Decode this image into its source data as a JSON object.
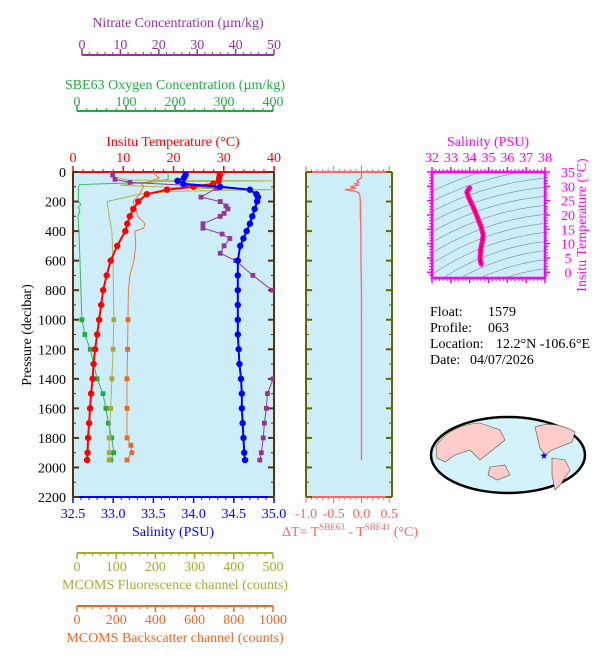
{
  "colors": {
    "temperature": "#ff0000",
    "salinity": "#0000ff",
    "nitrate": "#993399",
    "oxygen": "#22aa44",
    "fluorescence": "#aaaa33",
    "backscatter": "#ee6622",
    "delta_t": "#ff6666",
    "ts": "#ff00ff",
    "frame": "#553311",
    "plot_bg": "#cdeef8",
    "land": "#ffcccc",
    "float_marker": "#0000ff"
  },
  "info": {
    "float_label": "Float:",
    "float": "1579",
    "profile_label": "Profile:",
    "profile": "063",
    "location_label": "Location:",
    "location": "12.2°N  -106.6°E",
    "date_label": "Date:",
    "date": "04/07/2026"
  },
  "chart_data": [
    {
      "type": "line",
      "ylabel": "Pressure (decibar)",
      "ylim": [
        2200,
        0
      ],
      "yticks": [
        "0",
        "200",
        "400",
        "600",
        "800",
        "1000",
        "1200",
        "1400",
        "1600",
        "1800",
        "2000",
        "2200"
      ],
      "grid": false,
      "axes": {
        "nitrate": {
          "label": "Nitrate Concentration (µm/kg)",
          "lim": [
            0,
            50
          ],
          "ticks": [
            "0",
            "10",
            "20",
            "30",
            "40",
            "50"
          ]
        },
        "oxygen": {
          "label": "SBE63 Oxygen Concentration (µm/kg)",
          "lim": [
            0,
            400
          ],
          "ticks": [
            "0",
            "100",
            "200",
            "300",
            "400"
          ]
        },
        "temperature": {
          "label": "Insitu Temperature (°C)",
          "lim": [
            0,
            40
          ],
          "ticks": [
            "0",
            "10",
            "20",
            "30",
            "40"
          ]
        },
        "salinity": {
          "label": "Salinity (PSU)",
          "lim": [
            32.5,
            35.0
          ],
          "ticks": [
            "32.5",
            "33.0",
            "33.5",
            "34.0",
            "34.5",
            "35.0"
          ]
        },
        "fluorescence": {
          "label": "MCOMS Fluorescence channel (counts)",
          "lim": [
            0,
            500
          ],
          "ticks": [
            "0",
            "100",
            "200",
            "300",
            "400",
            "500"
          ]
        },
        "backscatter": {
          "label": "MCOMS Backscatter channel (counts)",
          "lim": [
            0,
            1000
          ],
          "ticks": [
            "0",
            "200",
            "400",
            "600",
            "800",
            "1000"
          ]
        }
      },
      "series": {
        "temperature": {
          "pressure": [
            0,
            20,
            40,
            60,
            80,
            100,
            120,
            150,
            200,
            250,
            300,
            350,
            400,
            500,
            600,
            700,
            800,
            900,
            1000,
            1100,
            1200,
            1300,
            1400,
            1500,
            1600,
            1700,
            1800,
            1900,
            1950
          ],
          "values": [
            29.2,
            29.2,
            29.1,
            29.0,
            27.9,
            24.0,
            18.7,
            14.7,
            13.0,
            12.0,
            11.3,
            10.8,
            10.4,
            8.8,
            7.5,
            6.7,
            6.0,
            5.6,
            5.2,
            4.8,
            4.4,
            4.1,
            3.9,
            3.6,
            3.4,
            3.2,
            3.0,
            2.9,
            2.8
          ]
        },
        "salinity": {
          "pressure": [
            0,
            20,
            40,
            60,
            80,
            100,
            120,
            150,
            170,
            200,
            250,
            300,
            350,
            400,
            450,
            500,
            600,
            700,
            800,
            900,
            1000,
            1100,
            1200,
            1300,
            1400,
            1500,
            1600,
            1700,
            1800,
            1900,
            1950
          ],
          "values": [
            33.9,
            33.9,
            33.88,
            33.8,
            33.87,
            34.33,
            34.7,
            34.78,
            34.8,
            34.79,
            34.76,
            34.73,
            34.7,
            34.66,
            34.62,
            34.58,
            34.55,
            34.55,
            34.55,
            34.55,
            34.55,
            34.55,
            34.56,
            34.57,
            34.59,
            34.6,
            34.6,
            34.61,
            34.62,
            34.63,
            34.64
          ]
        },
        "nitrate": {
          "pressure": [
            20,
            50,
            70,
            90,
            110,
            170,
            200,
            230,
            250,
            280,
            300,
            350,
            380,
            420,
            450,
            500,
            550,
            600,
            700,
            800,
            1400,
            1500,
            1600,
            1700,
            1800,
            1900,
            1950
          ],
          "values": [
            8.0,
            8.6,
            12.5,
            27.0,
            35.0,
            31.0,
            36.0,
            37.5,
            38.0,
            37.0,
            36.0,
            31.5,
            31.5,
            36.5,
            38.5,
            37.0,
            36.0,
            40.0,
            44.5,
            49.5,
            49.8,
            48.3,
            48.0,
            47.5,
            47.2,
            46.7,
            46.3
          ]
        },
        "oxygen": {
          "pressure": [
            0,
            50,
            70,
            85,
            100,
            200,
            220,
            240,
            260,
            300,
            400,
            1000,
            1100,
            1200,
            1300,
            1400,
            1500,
            1600,
            1700,
            1800,
            1900,
            1950
          ],
          "values": [
            186,
            186,
            150,
            5,
            3,
            3,
            8,
            2,
            6,
            2,
            4,
            10,
            16,
            27,
            34,
            41,
            53,
            59,
            64,
            71,
            75,
            69
          ]
        },
        "fluorescence": {
          "pressure": [
            0,
            30,
            55,
            60,
            65,
            90,
            110,
            120,
            130,
            150,
            200,
            300,
            400,
            600,
            800,
            1000,
            1200,
            1400,
            1600,
            1800,
            1900,
            1950
          ],
          "values": [
            84,
            90,
            130,
            520,
            200,
            110,
            300,
            520,
            250,
            160,
            77,
            82,
            89,
            92,
            93,
            94,
            92,
            89,
            86,
            82,
            82,
            82
          ],
          "markers_from": 1000
        },
        "backscatter": {
          "pressure": [
            0,
            20,
            40,
            60,
            80,
            100,
            120,
            150,
            200,
            250,
            300,
            350,
            380,
            400,
            500,
            600,
            700,
            800,
            1000,
            1200,
            1400,
            1600,
            1800,
            1850,
            1900,
            1950
          ],
          "values": [
            390,
            400,
            420,
            380,
            330,
            340,
            330,
            320,
            286,
            300,
            310,
            347,
            340,
            296,
            300,
            290,
            270,
            262,
            260,
            258,
            255,
            255,
            255,
            275,
            280,
            255
          ],
          "markers_from": 1000
        }
      }
    },
    {
      "type": "line",
      "xlabel": "ΔT= T",
      "xlabel_sup1": "SBE63",
      "xlabel_mid": " - T",
      "xlabel_sup2": "SBE41",
      "xlabel_unit": " (°C)",
      "xlim": [
        -1.0,
        0.55
      ],
      "xticks": [
        "-1.0",
        "-0.5",
        "0.0",
        "0.5"
      ],
      "ylim": [
        2200,
        0
      ],
      "pressure": [
        0,
        40,
        60,
        70,
        80,
        90,
        100,
        110,
        120,
        130,
        140,
        160,
        200,
        300,
        400,
        600,
        800,
        1000,
        1200,
        1400,
        1600,
        1800,
        1950
      ],
      "values": [
        0.0,
        0.0,
        -0.08,
        -0.05,
        -0.12,
        -0.06,
        -0.2,
        -0.1,
        -0.3,
        -0.12,
        -0.05,
        -0.03,
        -0.02,
        -0.02,
        -0.01,
        -0.01,
        0.0,
        0.0,
        0.0,
        0.0,
        0.0,
        0.0,
        0.0
      ]
    },
    {
      "type": "line",
      "xlabel": "Salinity (PSU)",
      "ylabel": "Insitu Temperature (°C)",
      "xlim": [
        32,
        38
      ],
      "ylim": [
        -2,
        35
      ],
      "xticks": [
        "32",
        "33",
        "34",
        "35",
        "36",
        "37",
        "38"
      ],
      "yticks": [
        "0",
        "5",
        "10",
        "15",
        "20",
        "25",
        "30",
        "35"
      ],
      "salinity": [
        34.0,
        33.85,
        33.95,
        34.1,
        34.3,
        34.45,
        34.6,
        34.72,
        34.65,
        34.58,
        34.55,
        34.58,
        34.62
      ],
      "temperature": [
        29.5,
        28,
        26,
        24,
        21,
        18.5,
        16,
        13,
        10,
        8,
        5,
        3.5,
        2.8
      ]
    }
  ]
}
